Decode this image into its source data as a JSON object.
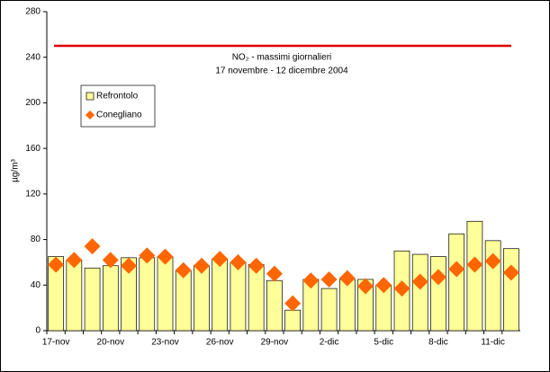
{
  "chart_data": {
    "type": "bar",
    "title": "NO₂ - massimi giornalieri",
    "subtitle": "17 novembre - 12 dicembre 2004",
    "y_label": "µg/m³",
    "categories": [
      "17-nov",
      null,
      null,
      "20-nov",
      null,
      null,
      "23-nov",
      null,
      null,
      "26-nov",
      null,
      null,
      "29-nov",
      null,
      null,
      "2-dic",
      null,
      null,
      "5-dic",
      null,
      null,
      "8-dic",
      null,
      null,
      "11-dic",
      null
    ],
    "series": [
      {
        "name": "Refrontolo",
        "type": "bar",
        "color": "#ffff99",
        "values": [
          65,
          62,
          55,
          57,
          64,
          64,
          65,
          53,
          57,
          63,
          60,
          58,
          44,
          18,
          45,
          37,
          45,
          45,
          40,
          70,
          67,
          65,
          85,
          96,
          79,
          72
        ]
      },
      {
        "name": "Conegliano",
        "type": "scatter",
        "color": "#ff6600",
        "values": [
          58,
          62,
          74,
          62,
          57,
          66,
          65,
          53,
          57,
          63,
          60,
          57,
          50,
          24,
          44,
          45,
          46,
          39,
          40,
          37,
          43,
          47,
          54,
          58,
          61,
          51
        ]
      }
    ],
    "limit": {
      "value": 250,
      "color": "#e00000"
    },
    "ylim": [
      0,
      280
    ],
    "yticks": [
      0,
      40,
      80,
      120,
      160,
      200,
      240,
      280
    ],
    "legend": "upper-left"
  }
}
